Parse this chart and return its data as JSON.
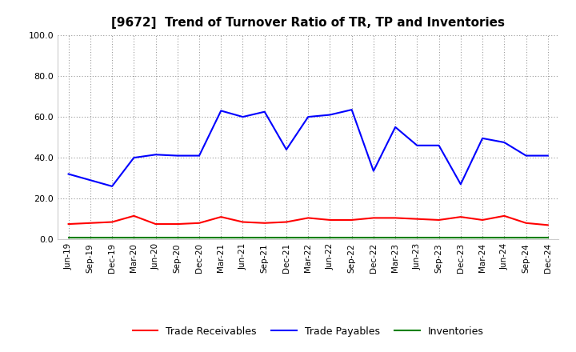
{
  "title": "[9672]  Trend of Turnover Ratio of TR, TP and Inventories",
  "xlabels": [
    "Jun-19",
    "Sep-19",
    "Dec-19",
    "Mar-20",
    "Jun-20",
    "Sep-20",
    "Dec-20",
    "Mar-21",
    "Jun-21",
    "Sep-21",
    "Dec-21",
    "Mar-22",
    "Jun-22",
    "Sep-22",
    "Dec-22",
    "Mar-23",
    "Jun-23",
    "Sep-23",
    "Dec-23",
    "Mar-24",
    "Jun-24",
    "Sep-24",
    "Dec-24"
  ],
  "trade_receivables": [
    7.5,
    8.0,
    8.5,
    11.5,
    7.5,
    7.5,
    8.0,
    11.0,
    8.5,
    8.0,
    8.5,
    10.5,
    9.5,
    9.5,
    10.5,
    10.5,
    10.0,
    9.5,
    11.0,
    9.5,
    11.5,
    8.0,
    7.0
  ],
  "trade_payables": [
    32.0,
    29.0,
    26.0,
    40.0,
    41.5,
    41.0,
    41.0,
    63.0,
    60.0,
    62.5,
    44.0,
    60.0,
    61.0,
    63.5,
    33.5,
    55.0,
    46.0,
    46.0,
    27.0,
    49.5,
    47.5,
    41.0,
    41.0
  ],
  "inventories": [
    1.0,
    1.0,
    1.0,
    1.0,
    1.0,
    1.0,
    1.0,
    1.0,
    1.0,
    1.0,
    1.0,
    1.0,
    1.0,
    1.0,
    1.0,
    1.0,
    1.0,
    1.0,
    1.0,
    1.0,
    1.0,
    1.0,
    1.0
  ],
  "ylim": [
    0.0,
    100.0
  ],
  "yticks": [
    0.0,
    20.0,
    40.0,
    60.0,
    80.0,
    100.0
  ],
  "tr_color": "#ff0000",
  "tp_color": "#0000ff",
  "inv_color": "#008000",
  "background_color": "#ffffff",
  "grid_color": "#999999",
  "legend_labels": [
    "Trade Receivables",
    "Trade Payables",
    "Inventories"
  ]
}
